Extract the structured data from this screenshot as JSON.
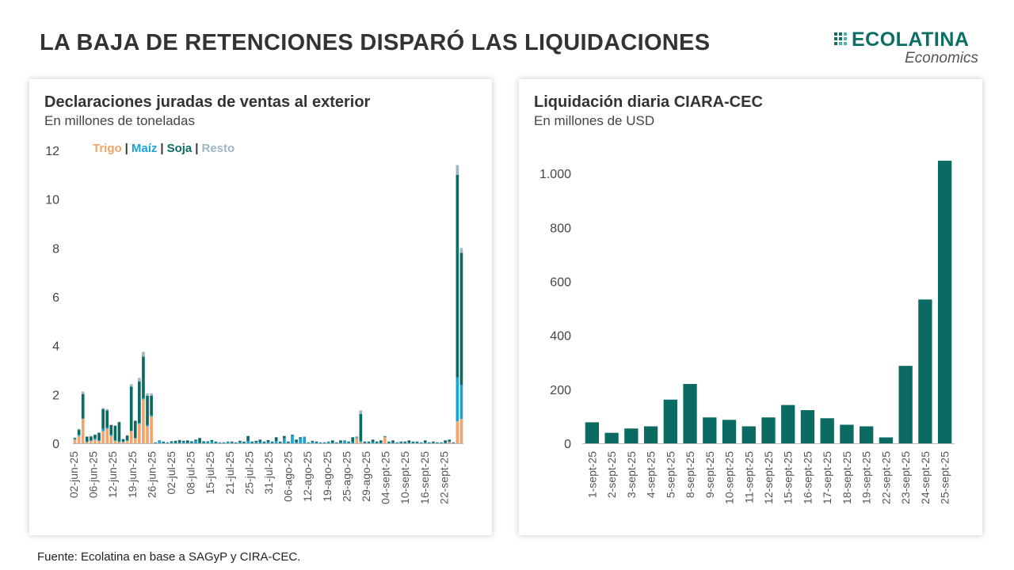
{
  "title": "LA BAJA DE RETENCIONES DISPARÓ LAS LIQUIDACIONES",
  "logo": {
    "name": "ECOLATINA",
    "sub": "Economics"
  },
  "source": "Fuente: Ecolatina en base a SAGyP y CIRA-CEC.",
  "colors": {
    "trigo": "#f2a469",
    "maiz": "#1aa3d6",
    "soja": "#0b6b63",
    "resto": "#9fb7c1",
    "bar": "#0b6b63",
    "axis": "#bbbbbb"
  },
  "chart_data": [
    {
      "type": "bar",
      "stacked": true,
      "title": "Declaraciones juradas de ventas al exterior",
      "subtitle": "En millones de toneladas",
      "ylim": [
        0,
        12
      ],
      "yticks": [
        0,
        2,
        4,
        6,
        8,
        10,
        12
      ],
      "legend": {
        "position": "top-left",
        "items": [
          {
            "name": "Trigo",
            "color": "#f2a469"
          },
          {
            "name": "Maíz",
            "color": "#1aa3d6"
          },
          {
            "name": "Soja",
            "color": "#0b6b63"
          },
          {
            "name": "Resto",
            "color": "#9fb7c1"
          }
        ]
      },
      "xtick_labels": [
        "02-jun-25",
        "06-jun-25",
        "12-jun-25",
        "19-jun-25",
        "26-jun-25",
        "02-jul-25",
        "08-jul-25",
        "15-jul-25",
        "21-jul-25",
        "25-jul-25",
        "31-jul-25",
        "06-ago-25",
        "12-ago-25",
        "19-ago-25",
        "25-ago-25",
        "29-ago-25",
        "04-sept-25",
        "10-sept-25",
        "16-sept-25",
        "22-sept-25"
      ],
      "series": [
        {
          "name": "Trigo",
          "values": [
            0.15,
            0.3,
            1.0,
            0.05,
            0.1,
            0.15,
            0.1,
            0.5,
            0.6,
            0.3,
            0.1,
            0.05,
            0.05,
            0.1,
            0.5,
            0.2,
            0.8,
            1.8,
            0.7,
            1.1,
            0,
            0,
            0,
            0,
            0,
            0,
            0,
            0,
            0,
            0,
            0,
            0,
            0,
            0,
            0,
            0,
            0,
            0,
            0,
            0,
            0,
            0,
            0,
            0,
            0,
            0,
            0,
            0,
            0,
            0,
            0,
            0,
            0,
            0,
            0,
            0,
            0,
            0,
            0,
            0,
            0,
            0,
            0,
            0,
            0,
            0,
            0,
            0,
            0,
            0,
            0.2,
            0.05,
            0,
            0,
            0,
            0,
            0,
            0.25,
            0,
            0,
            0,
            0,
            0,
            0,
            0,
            0,
            0,
            0,
            0,
            0,
            0,
            0,
            0,
            0.05,
            0,
            0.9,
            1.0
          ]
        },
        {
          "name": "Maíz",
          "values": [
            0.02,
            0.05,
            0.02,
            0.02,
            0.03,
            0.05,
            0.03,
            0.1,
            0.05,
            0.05,
            0.02,
            0.02,
            0.02,
            0.02,
            0.02,
            0.02,
            0.03,
            0.05,
            0.05,
            0.05,
            0.02,
            0.1,
            0.02,
            0.02,
            0.03,
            0.02,
            0.03,
            0.05,
            0.02,
            0.03,
            0.1,
            0.02,
            0.03,
            0.05,
            0.08,
            0.02,
            0.02,
            0.02,
            0.05,
            0.02,
            0.02,
            0.05,
            0.02,
            0.1,
            0.02,
            0.05,
            0.05,
            0.02,
            0.05,
            0.02,
            0.1,
            0.02,
            0.2,
            0.02,
            0.3,
            0.05,
            0.2,
            0.25,
            0.02,
            0.05,
            0.02,
            0.02,
            0.02,
            0.05,
            0.02,
            0.02,
            0.02,
            0.1,
            0.02,
            0.05,
            0.02,
            0.05,
            0.02,
            0.02,
            0.05,
            0.02,
            0.02,
            0.02,
            0.02,
            0.02,
            0.02,
            0.02,
            0.02,
            0.02,
            0.02,
            0.02,
            0.02,
            0.02,
            0.02,
            0.02,
            0.02,
            0.02,
            0.02,
            0.02,
            0.02,
            1.8,
            1.4
          ]
        },
        {
          "name": "Soja",
          "values": [
            0.05,
            0.2,
            1.0,
            0.2,
            0.15,
            0.15,
            0.3,
            0.8,
            0.7,
            0.4,
            0.6,
            0.8,
            0.1,
            0.2,
            1.8,
            0.7,
            1.7,
            1.7,
            1.2,
            0.8,
            0.02,
            0.02,
            0.05,
            0.02,
            0.05,
            0.08,
            0.1,
            0.05,
            0.1,
            0.05,
            0.05,
            0.2,
            0.05,
            0.03,
            0.05,
            0.05,
            0.02,
            0.02,
            0.02,
            0.05,
            0.02,
            0.05,
            0.05,
            0.2,
            0.05,
            0.05,
            0.1,
            0.05,
            0.08,
            0.05,
            0.15,
            0.05,
            0.1,
            0.05,
            0.05,
            0.1,
            0.05,
            0.02,
            0.02,
            0.05,
            0.05,
            0.02,
            0.02,
            0.02,
            0.1,
            0.02,
            0.1,
            0.02,
            0.05,
            0.2,
            0.02,
            1.1,
            0.05,
            0.05,
            0.1,
            0.05,
            0.1,
            0.02,
            0.05,
            0.1,
            0.02,
            0.05,
            0.05,
            0.1,
            0.05,
            0.05,
            0.02,
            0.1,
            0.02,
            0.05,
            0.02,
            0.02,
            0.1,
            0.08,
            0.02,
            8.3,
            5.4
          ]
        },
        {
          "name": "Resto",
          "values": [
            0.02,
            0.05,
            0.1,
            0.02,
            0.02,
            0.02,
            0.02,
            0.05,
            0.05,
            0.02,
            0.02,
            0.02,
            0.02,
            0.02,
            0.1,
            0.02,
            0.15,
            0.2,
            0.1,
            0.1,
            0.01,
            0.01,
            0.01,
            0.01,
            0.01,
            0.01,
            0.01,
            0.01,
            0.01,
            0.01,
            0.01,
            0.01,
            0.01,
            0.01,
            0.01,
            0.01,
            0.01,
            0.01,
            0.01,
            0.01,
            0.01,
            0.01,
            0.01,
            0.01,
            0.01,
            0.01,
            0.01,
            0.01,
            0.01,
            0.01,
            0.01,
            0.01,
            0.01,
            0.01,
            0.01,
            0.01,
            0.01,
            0.01,
            0.01,
            0.01,
            0.01,
            0.01,
            0.01,
            0.01,
            0.01,
            0.01,
            0.01,
            0.01,
            0.01,
            0.01,
            0.05,
            0.15,
            0.01,
            0.01,
            0.01,
            0.01,
            0.01,
            0.01,
            0.01,
            0.01,
            0.01,
            0.01,
            0.01,
            0.01,
            0.01,
            0.01,
            0.01,
            0.01,
            0.01,
            0.01,
            0.01,
            0.01,
            0.01,
            0.01,
            0.01,
            0.4,
            0.2
          ]
        }
      ]
    },
    {
      "type": "bar",
      "title": "Liquidación diaria CIARA-CEC",
      "subtitle": "En millones de USD",
      "ylim": [
        0,
        1100
      ],
      "yticks": [
        0,
        200,
        400,
        600,
        800,
        1000
      ],
      "ytick_labels": [
        "0",
        "200",
        "400",
        "600",
        "800",
        "1.000"
      ],
      "categories": [
        "1-sept-25",
        "2-sept-25",
        "3-sept-25",
        "4-sept-25",
        "5-sept-25",
        "8-sept-25",
        "9-sept-25",
        "10-sept-25",
        "11-sept-25",
        "12-sept-25",
        "15-sept-25",
        "16-sept-25",
        "17-sept-25",
        "18-sept-25",
        "19-sept-25",
        "22-sept-25",
        "23-sept-25",
        "24-sept-25",
        "25-sept-25"
      ],
      "values": [
        78,
        39,
        55,
        63,
        162,
        220,
        96,
        87,
        63,
        96,
        142,
        123,
        93,
        69,
        63,
        22,
        287,
        533,
        1047
      ]
    }
  ]
}
